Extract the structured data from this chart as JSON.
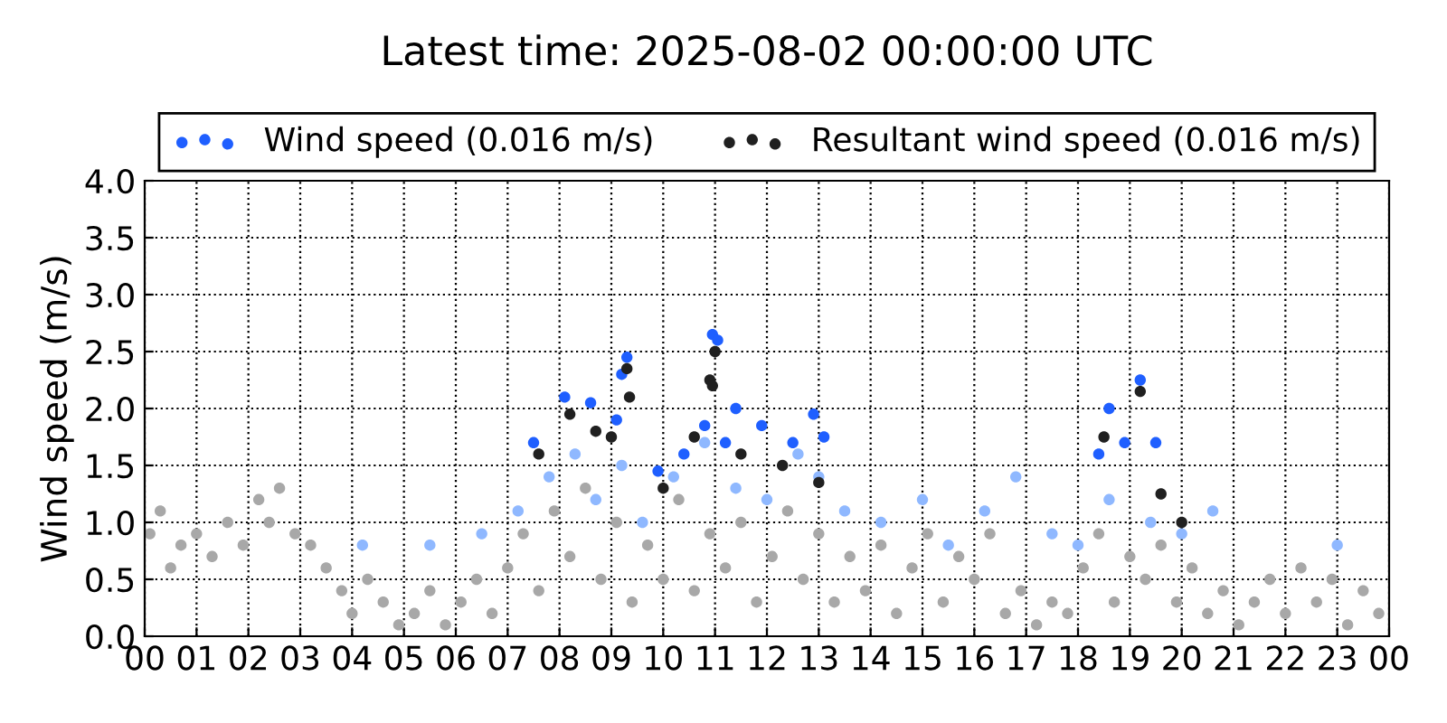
{
  "chart_data": {
    "type": "scatter",
    "title": "Latest time: 2025-08-02 00:00:00 UTC",
    "ylabel": "Wind speed (m/s)",
    "xlim": [
      0,
      24
    ],
    "xticks": [
      {
        "value": 0,
        "label": "00"
      },
      {
        "value": 1,
        "label": "01"
      },
      {
        "value": 2,
        "label": "02"
      },
      {
        "value": 3,
        "label": "03"
      },
      {
        "value": 4,
        "label": "04"
      },
      {
        "value": 5,
        "label": "05"
      },
      {
        "value": 6,
        "label": "06"
      },
      {
        "value": 7,
        "label": "07"
      },
      {
        "value": 8,
        "label": "08"
      },
      {
        "value": 9,
        "label": "09"
      },
      {
        "value": 10,
        "label": "10"
      },
      {
        "value": 11,
        "label": "11"
      },
      {
        "value": 12,
        "label": "12"
      },
      {
        "value": 13,
        "label": "13"
      },
      {
        "value": 14,
        "label": "14"
      },
      {
        "value": 15,
        "label": "15"
      },
      {
        "value": 16,
        "label": "16"
      },
      {
        "value": 17,
        "label": "17"
      },
      {
        "value": 18,
        "label": "18"
      },
      {
        "value": 19,
        "label": "19"
      },
      {
        "value": 20,
        "label": "20"
      },
      {
        "value": 21,
        "label": "21"
      },
      {
        "value": 22,
        "label": "22"
      },
      {
        "value": 23,
        "label": "23"
      },
      {
        "value": 24,
        "label": "00"
      }
    ],
    "ylim": [
      0,
      4
    ],
    "yticks": [
      {
        "value": 0,
        "label": "0.0"
      },
      {
        "value": 0.5,
        "label": "0.5"
      },
      {
        "value": 1,
        "label": "1.0"
      },
      {
        "value": 1.5,
        "label": "1.5"
      },
      {
        "value": 2,
        "label": "2.0"
      },
      {
        "value": 2.5,
        "label": "2.5"
      },
      {
        "value": 3,
        "label": "3.0"
      },
      {
        "value": 3.5,
        "label": "3.5"
      },
      {
        "value": 4,
        "label": "4.0"
      }
    ],
    "grid": true,
    "legend": "top",
    "marker": "circle",
    "series": [
      {
        "color": "#a8a8a8",
        "x": [
          0.1,
          0.3,
          0.5,
          0.7,
          1.0,
          1.3,
          1.6,
          1.9,
          2.2,
          2.4,
          2.6,
          2.9,
          3.2,
          3.5,
          3.8,
          4.0,
          4.3,
          4.6,
          4.9,
          5.2,
          5.5,
          5.8,
          6.1,
          6.4,
          6.7,
          7.0,
          7.3,
          7.6,
          7.9,
          8.2,
          8.5,
          8.8,
          9.1,
          9.4,
          9.7,
          10.0,
          10.3,
          10.6,
          10.9,
          11.2,
          11.5,
          11.8,
          12.1,
          12.4,
          12.7,
          13.0,
          13.3,
          13.6,
          13.9,
          14.2,
          14.5,
          14.8,
          15.1,
          15.4,
          15.7,
          16.0,
          16.3,
          16.6,
          16.9,
          17.2,
          17.5,
          17.8,
          18.1,
          18.4,
          18.7,
          19.0,
          19.3,
          19.6,
          19.9,
          20.2,
          20.5,
          20.8,
          21.1,
          21.4,
          21.7,
          22.0,
          22.3,
          22.6,
          22.9,
          23.2,
          23.5,
          23.8
        ],
        "values": [
          0.9,
          1.1,
          0.6,
          0.8,
          0.9,
          0.7,
          1.0,
          0.8,
          1.2,
          1.0,
          1.3,
          0.9,
          0.8,
          0.6,
          0.4,
          0.2,
          0.5,
          0.3,
          0.1,
          0.2,
          0.4,
          0.1,
          0.3,
          0.5,
          0.2,
          0.6,
          0.9,
          0.4,
          1.1,
          0.7,
          1.3,
          0.5,
          1.0,
          0.3,
          0.8,
          0.5,
          1.2,
          0.4,
          0.9,
          0.6,
          1.0,
          0.3,
          0.7,
          1.1,
          0.5,
          0.9,
          0.3,
          0.7,
          0.4,
          0.8,
          0.2,
          0.6,
          0.9,
          0.3,
          0.7,
          0.5,
          0.9,
          0.2,
          0.4,
          0.1,
          0.3,
          0.2,
          0.6,
          0.9,
          0.3,
          0.7,
          0.5,
          0.8,
          0.3,
          0.6,
          0.2,
          0.4,
          0.1,
          0.3,
          0.5,
          0.2,
          0.6,
          0.3,
          0.5,
          0.1,
          0.4,
          0.2
        ]
      },
      {
        "color": "#8fb8ff",
        "x": [
          4.2,
          5.5,
          6.5,
          7.2,
          7.8,
          8.3,
          8.7,
          9.2,
          9.6,
          10.2,
          10.8,
          11.4,
          12.0,
          12.6,
          13.0,
          13.5,
          14.2,
          15.0,
          15.5,
          16.2,
          16.8,
          17.5,
          18.0,
          18.6,
          19.4,
          20.0,
          20.6,
          23.0
        ],
        "values": [
          0.8,
          0.8,
          0.9,
          1.1,
          1.4,
          1.6,
          1.2,
          1.5,
          1.0,
          1.4,
          1.7,
          1.3,
          1.2,
          1.6,
          1.4,
          1.1,
          1.0,
          1.2,
          0.8,
          1.1,
          1.4,
          0.9,
          0.8,
          1.2,
          1.0,
          0.9,
          1.1,
          0.8
        ]
      },
      {
        "name": "Wind speed (0.016 m/s)",
        "color": "#1f5fff",
        "x": [
          7.5,
          8.1,
          8.6,
          9.1,
          9.2,
          9.3,
          9.9,
          10.4,
          10.8,
          10.95,
          11.05,
          11.2,
          11.4,
          11.9,
          12.5,
          12.9,
          13.1,
          18.4,
          18.6,
          18.9,
          19.2,
          19.5
        ],
        "values": [
          1.7,
          2.1,
          2.05,
          1.9,
          2.3,
          2.45,
          1.45,
          1.6,
          1.85,
          2.65,
          2.6,
          1.7,
          2.0,
          1.85,
          1.7,
          1.95,
          1.75,
          1.6,
          2.0,
          1.7,
          2.25,
          1.7
        ]
      },
      {
        "name": "Resultant wind speed (0.016 m/s)",
        "color": "#202020",
        "x": [
          7.6,
          8.2,
          8.7,
          9.0,
          9.3,
          9.35,
          10.0,
          10.6,
          10.9,
          10.95,
          11.0,
          11.5,
          12.3,
          13.0,
          18.5,
          19.2,
          19.6,
          20.0
        ],
        "values": [
          1.6,
          1.95,
          1.8,
          1.75,
          2.35,
          2.1,
          1.3,
          1.75,
          2.25,
          2.2,
          2.5,
          1.6,
          1.5,
          1.35,
          1.75,
          2.15,
          1.25,
          1.0
        ]
      }
    ]
  }
}
